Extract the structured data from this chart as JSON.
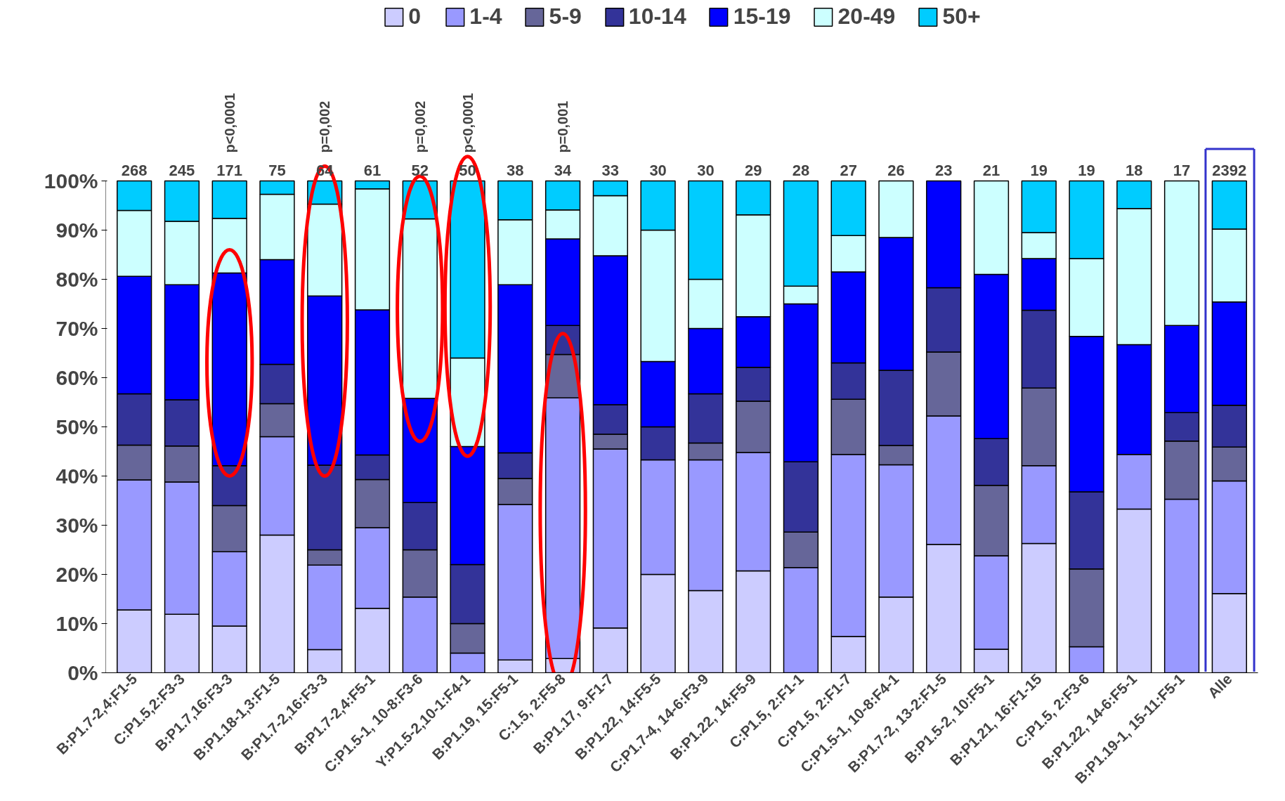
{
  "chart_data": {
    "type": "bar",
    "stacked": true,
    "categories": [
      "B:P1.7-2,4;F1-5",
      "C:P1.5,2:F3-3",
      "B:P1.7,16:F3-3",
      "B:P1.18-1,3:F1-5",
      "B:P1.7-2,16:F3-3",
      "B:P1.7-2,4:F5-1",
      "C:P1.5-1, 10-8:F3-6",
      "Y:P1.5-2,10-1:F4-1",
      "B:P1.19, 15:F5-1",
      "C:1.5, 2:F5-8",
      "B:P1.17, 9:F1-7",
      "B:P1.22, 14:F5-5",
      "C:P1.7-4, 14-6:F3-9",
      "B:P1.22, 14:F5-9",
      "C:P1.5, 2:F1-1",
      "C:P1.5, 2:F1-7",
      "C:P1.5-1, 10-8:F4-1",
      "B:P1.7-2, 13-2:F1-5",
      "B:P1.5-2, 10:F5-1",
      "B:P1.21, 16:F1-15",
      "C:P1.5, 2:F3-6",
      "B:P1.22, 14-6:F5-1",
      "B:P1.19-1, 15-11:F5-1",
      "Alle"
    ],
    "series": [
      {
        "name": "0",
        "color": "#ccccff",
        "values": [
          12.8,
          11.9,
          9.5,
          28.0,
          4.7,
          13.1,
          0,
          0,
          2.6,
          2.9,
          9.1,
          20.0,
          16.7,
          20.7,
          0,
          7.4,
          15.4,
          26.1,
          4.8,
          26.3,
          0,
          33.3,
          0,
          16.1
        ]
      },
      {
        "name": "1-4",
        "color": "#9999ff",
        "values": [
          26.4,
          26.9,
          15.1,
          20.0,
          17.2,
          16.4,
          15.4,
          4.0,
          31.6,
          53.0,
          36.4,
          23.3,
          26.6,
          24.1,
          21.4,
          37.0,
          26.9,
          26.1,
          19.0,
          15.8,
          5.3,
          11.1,
          35.3,
          22.9
        ]
      },
      {
        "name": "5-9",
        "color": "#666699",
        "values": [
          7.1,
          7.3,
          9.4,
          6.7,
          3.1,
          9.8,
          9.6,
          6.0,
          5.3,
          8.8,
          3.0,
          0,
          3.4,
          10.4,
          7.2,
          11.2,
          3.9,
          13.0,
          14.3,
          15.8,
          15.8,
          0,
          11.8,
          6.9
        ]
      },
      {
        "name": "10-14",
        "color": "#333399",
        "values": [
          10.4,
          9.4,
          8.1,
          8.0,
          17.2,
          5.0,
          9.6,
          12.0,
          5.2,
          5.9,
          6.0,
          6.7,
          10.0,
          6.9,
          14.3,
          7.4,
          15.3,
          13.1,
          9.5,
          15.8,
          15.7,
          0,
          5.8,
          8.5
        ]
      },
      {
        "name": "15-19",
        "color": "#0000ff",
        "values": [
          23.9,
          23.4,
          39.2,
          21.3,
          34.4,
          29.5,
          21.2,
          24.0,
          34.2,
          17.6,
          30.3,
          13.3,
          13.3,
          10.3,
          32.1,
          18.5,
          27.0,
          21.7,
          33.4,
          10.5,
          31.6,
          22.3,
          17.7,
          21.0
        ]
      },
      {
        "name": "20-49",
        "color": "#ccffff",
        "values": [
          13.4,
          12.9,
          11.1,
          13.3,
          18.7,
          24.6,
          36.5,
          18.0,
          13.2,
          5.9,
          12.2,
          26.7,
          10.0,
          20.7,
          3.6,
          7.4,
          11.5,
          0,
          19.0,
          5.3,
          15.8,
          27.7,
          29.4,
          14.8
        ]
      },
      {
        "name": "50+",
        "color": "#00ccff",
        "values": [
          6.0,
          8.2,
          7.6,
          2.7,
          4.7,
          1.6,
          7.7,
          36.0,
          7.9,
          5.9,
          3.0,
          10.0,
          20.0,
          6.9,
          21.4,
          11.1,
          0,
          0,
          0,
          10.5,
          15.8,
          5.6,
          0,
          9.8
        ]
      }
    ],
    "annotations": [
      {
        "text": "268",
        "x": "B:P1.7-2,4;F1-5",
        "y": 100
      },
      {
        "text": "245",
        "x": "C:P1.5,2:F3-3",
        "y": 100
      },
      {
        "text": "171",
        "x": "B:P1.7,16:F3-3",
        "y": 100
      },
      {
        "text": "75",
        "x": "B:P1.18-1,3:F1-5",
        "y": 100
      },
      {
        "text": "64",
        "x": "B:P1.7-2,16:F3-3",
        "y": 100
      },
      {
        "text": "61",
        "x": "B:P1.7-2,4:F5-1",
        "y": 100
      },
      {
        "text": "52",
        "x": "C:P1.5-1, 10-8:F3-6",
        "y": 100
      },
      {
        "text": "50",
        "x": "Y:P1.5-2,10-1:F4-1",
        "y": 100
      },
      {
        "text": "38",
        "x": "B:P1.19, 15:F5-1",
        "y": 100
      },
      {
        "text": "34",
        "x": "C:1.5, 2:F5-8",
        "y": 100
      },
      {
        "text": "33",
        "x": "B:P1.17, 9:F1-7",
        "y": 100
      },
      {
        "text": "30",
        "x": "B:P1.22, 14:F5-5",
        "y": 100
      },
      {
        "text": "30",
        "x": "C:P1.7-4, 14-6:F3-9",
        "y": 100
      },
      {
        "text": "29",
        "x": "B:P1.22, 14:F5-9",
        "y": 100
      },
      {
        "text": "28",
        "x": "C:P1.5, 2:F1-1",
        "y": 100
      },
      {
        "text": "27",
        "x": "C:P1.5, 2:F1-7",
        "y": 100
      },
      {
        "text": "26",
        "x": "C:P1.5-1, 10-8:F4-1",
        "y": 100
      },
      {
        "text": "23",
        "x": "B:P1.7-2, 13-2:F1-5",
        "y": 100
      },
      {
        "text": "21",
        "x": "B:P1.5-2, 10:F5-1",
        "y": 100
      },
      {
        "text": "19",
        "x": "B:P1.21, 16:F1-15",
        "y": 100
      },
      {
        "text": "19",
        "x": "C:P1.5, 2:F3-6",
        "y": 100
      },
      {
        "text": "18",
        "x": "B:P1.22, 14-6:F5-1",
        "y": 100
      },
      {
        "text": "17",
        "x": "B:P1.19-1, 15-11:F5-1",
        "y": 100
      },
      {
        "text": "2392",
        "x": "Alle",
        "y": 100
      },
      "p<0,0001",
      "p=0,002",
      "p=0,002",
      "p<0,0001",
      "p=0,001"
    ],
    "ylim": [
      0,
      100
    ],
    "yticks": [
      {
        "value": 0,
        "label": "0%"
      },
      {
        "value": 10,
        "label": "10%"
      },
      {
        "value": 20,
        "label": "20%"
      },
      {
        "value": 30,
        "label": "30%"
      },
      {
        "value": 40,
        "label": "40%"
      },
      {
        "value": 50,
        "label": "50%"
      },
      {
        "value": 60,
        "label": "60%"
      },
      {
        "value": 70,
        "label": "70%"
      },
      {
        "value": 80,
        "label": "80%"
      },
      {
        "value": 90,
        "label": "90%"
      },
      {
        "value": 100,
        "label": "100%"
      }
    ],
    "grid": false,
    "legend": "top"
  }
}
